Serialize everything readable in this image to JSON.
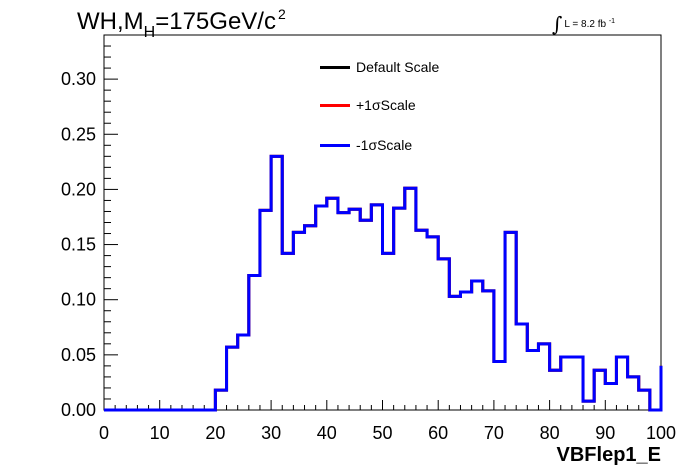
{
  "header": {
    "title_prefix": "WH,M",
    "title_sub": "H",
    "title_value": "=175GeV/c",
    "title_sup": "2",
    "lumi_integral": "∫",
    "lumi_text": "L = 8.2 fb",
    "lumi_unit": "-1"
  },
  "legend": {
    "items": [
      {
        "label": "Default Scale",
        "color": "#000000"
      },
      {
        "label": "+1σScale",
        "color": "#ff0000"
      },
      {
        "label": "-1σScale",
        "color": "#0000ff"
      }
    ]
  },
  "chart_data": {
    "type": "line",
    "style": "step-histogram",
    "xlabel": "VBFlep1_E",
    "ylabel": "",
    "xlim": [
      0,
      100
    ],
    "ylim": [
      0,
      0.34
    ],
    "xticks": [
      0,
      10,
      20,
      30,
      40,
      50,
      60,
      70,
      80,
      90,
      100
    ],
    "yticks": [
      0.0,
      0.05,
      0.1,
      0.15,
      0.2,
      0.25,
      0.3
    ],
    "ytick_labels": [
      "0.00",
      "0.05",
      "0.10",
      "0.15",
      "0.20",
      "0.25",
      "0.30"
    ],
    "bin_edges": [
      0,
      2,
      4,
      6,
      8,
      10,
      12,
      14,
      16,
      18,
      20,
      22,
      24,
      26,
      28,
      30,
      32,
      34,
      36,
      38,
      40,
      42,
      44,
      46,
      48,
      50,
      52,
      54,
      56,
      58,
      60,
      62,
      64,
      66,
      68,
      70,
      72,
      74,
      76,
      78,
      80,
      82,
      84,
      86,
      88,
      90,
      92,
      94,
      96,
      98,
      100
    ],
    "series": [
      {
        "name": "Default Scale",
        "color": "#000000",
        "values": [
          0,
          0,
          0,
          0,
          0,
          0,
          0,
          0,
          0,
          0,
          0.018,
          0.057,
          0.068,
          0.122,
          0.181,
          0.23,
          0.142,
          0.161,
          0.167,
          0.185,
          0.192,
          0.179,
          0.182,
          0.172,
          0.186,
          0.142,
          0.183,
          0.201,
          0.163,
          0.157,
          0.137,
          0.103,
          0.107,
          0.117,
          0.108,
          0.044,
          0.161,
          0.078,
          0.054,
          0.06,
          0.036,
          0.048,
          0.048,
          0.008,
          0.036,
          0.024,
          0.048,
          0.03,
          0.018,
          0.0,
          0.04
        ]
      },
      {
        "name": "+1σScale",
        "color": "#ff0000",
        "values": [
          0,
          0,
          0,
          0,
          0,
          0,
          0,
          0,
          0,
          0,
          0.018,
          0.057,
          0.068,
          0.122,
          0.181,
          0.23,
          0.142,
          0.161,
          0.167,
          0.185,
          0.192,
          0.179,
          0.182,
          0.172,
          0.186,
          0.142,
          0.183,
          0.201,
          0.163,
          0.157,
          0.137,
          0.103,
          0.107,
          0.117,
          0.108,
          0.044,
          0.161,
          0.078,
          0.054,
          0.06,
          0.036,
          0.048,
          0.048,
          0.008,
          0.036,
          0.024,
          0.048,
          0.03,
          0.018,
          0.0,
          0.04
        ]
      },
      {
        "name": "-1σScale",
        "color": "#0000ff",
        "values": [
          0,
          0,
          0,
          0,
          0,
          0,
          0,
          0,
          0,
          0,
          0.018,
          0.057,
          0.068,
          0.122,
          0.181,
          0.23,
          0.142,
          0.161,
          0.167,
          0.185,
          0.192,
          0.179,
          0.182,
          0.172,
          0.186,
          0.142,
          0.183,
          0.201,
          0.163,
          0.157,
          0.137,
          0.103,
          0.107,
          0.117,
          0.108,
          0.044,
          0.161,
          0.078,
          0.054,
          0.06,
          0.036,
          0.048,
          0.048,
          0.008,
          0.036,
          0.024,
          0.048,
          0.03,
          0.018,
          0.0,
          0.04
        ]
      }
    ]
  }
}
